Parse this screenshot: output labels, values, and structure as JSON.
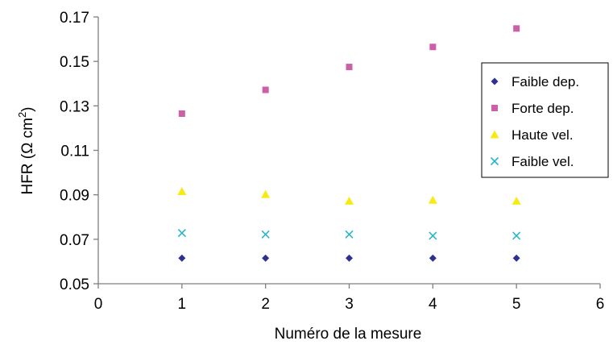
{
  "chart_data": {
    "type": "scatter",
    "xlabel": "Numéro de la mesure",
    "ylabel_prefix": "HFR   (Ω cm",
    "ylabel_sup": "2",
    "ylabel_suffix": ")",
    "xlim": [
      0,
      6
    ],
    "ylim": [
      0.05,
      0.17
    ],
    "xticks": [
      "0",
      "1",
      "2",
      "3",
      "4",
      "5",
      "6"
    ],
    "yticks": [
      "0.05",
      "0.07",
      "0.09",
      "0.11",
      "0.13",
      "0.15",
      "0.17"
    ],
    "grid": false,
    "legend_position": "right",
    "series": [
      {
        "name": "Faible dep.",
        "marker": "diamond",
        "color": "#2E3192",
        "x": [
          1,
          2,
          3,
          4,
          5
        ],
        "y": [
          0.0615,
          0.0615,
          0.0615,
          0.0615,
          0.0615
        ]
      },
      {
        "name": "Forte dep.",
        "marker": "square",
        "color": "#CC5FA8",
        "x": [
          1,
          2,
          3,
          4,
          5
        ],
        "y": [
          0.1265,
          0.1372,
          0.1475,
          0.1565,
          0.1648
        ]
      },
      {
        "name": "Haute vel.",
        "marker": "triangle",
        "color": "#F7EB13",
        "x": [
          1,
          2,
          3,
          4,
          5
        ],
        "y": [
          0.0915,
          0.0902,
          0.0872,
          0.0876,
          0.0872
        ]
      },
      {
        "name": "Faible vel.",
        "marker": "x",
        "color": "#29B6C8",
        "x": [
          1,
          2,
          3,
          4,
          5
        ],
        "y": [
          0.0728,
          0.0722,
          0.0722,
          0.0716,
          0.0716
        ]
      }
    ]
  }
}
